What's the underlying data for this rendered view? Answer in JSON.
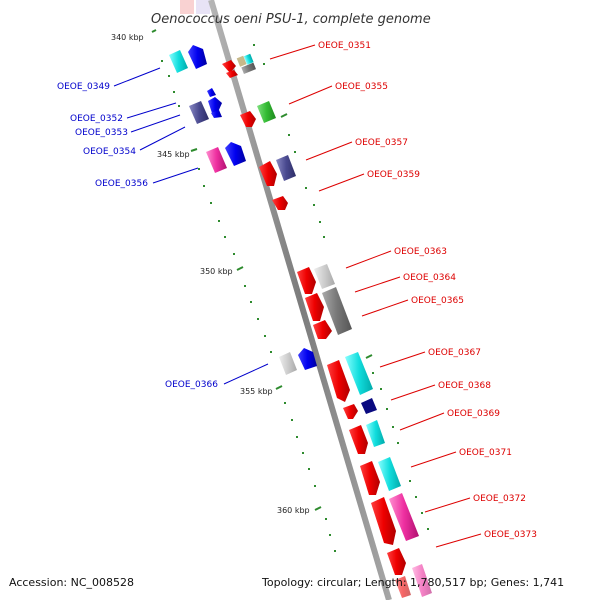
{
  "title": "Oenococcus oeni PSU-1, complete genome",
  "footer": {
    "accession": "Accession: NC_008528",
    "summary": "Topology: circular; Length: 1,780,517 bp; Genes: 1,741"
  },
  "colors": {
    "backbone": "#8c8c8c",
    "tick_marks": "#2e8b2e",
    "minus_strand_label": "#0000cc",
    "plus_strand_label": "#dd0000"
  },
  "scale_labels": [
    "340 kbp",
    "345 kbp",
    "350 kbp",
    "355 kbp",
    "360 kbp"
  ],
  "gene_labels_left": [
    "OEOE_0349",
    "OEOE_0352",
    "OEOE_0353",
    "OEOE_0354",
    "OEOE_0356",
    "OEOE_0366"
  ],
  "gene_labels_right": [
    "OEOE_0351",
    "OEOE_0355",
    "OEOE_0357",
    "OEOE_0359",
    "OEOE_0363",
    "OEOE_0364",
    "OEOE_0365",
    "OEOE_0367",
    "OEOE_0368",
    "OEOE_0369",
    "OEOE_0371",
    "OEOE_0372",
    "OEOE_0373"
  ]
}
